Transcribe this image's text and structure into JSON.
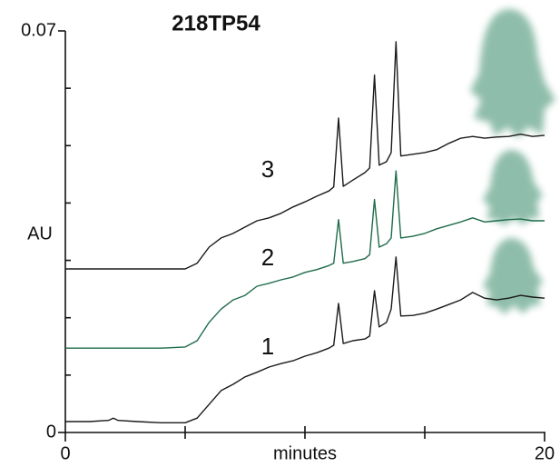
{
  "chart_data": {
    "type": "line",
    "title": "218TP54",
    "xlabel": "minutes",
    "ylabel": "AU",
    "x": [
      0,
      1,
      1.8,
      2,
      2.2,
      3,
      4,
      5,
      5.5,
      6,
      6.5,
      7,
      7.5,
      8,
      8.5,
      9,
      9.5,
      10,
      10.5,
      11,
      11.2,
      11.4,
      11.6,
      12,
      12.5,
      12.7,
      12.9,
      13.1,
      13.4,
      13.6,
      13.8,
      14,
      14.5,
      15,
      15.5,
      16,
      16.5,
      17,
      17.5,
      18,
      18.5,
      19,
      19.5,
      20
    ],
    "series": [
      {
        "name": "1",
        "color": "#1a1a1a",
        "values": [
          0.0019,
          0.0019,
          0.0021,
          0.0025,
          0.0021,
          0.0019,
          0.0017,
          0.0017,
          0.0025,
          0.0049,
          0.0073,
          0.0084,
          0.0097,
          0.0105,
          0.0114,
          0.012,
          0.0125,
          0.0133,
          0.0139,
          0.0147,
          0.0152,
          0.0225,
          0.0155,
          0.016,
          0.0163,
          0.0168,
          0.0247,
          0.0184,
          0.0192,
          0.0215,
          0.0306,
          0.0203,
          0.0204,
          0.0208,
          0.0215,
          0.0223,
          0.0231,
          0.0244,
          0.0234,
          0.0231,
          0.0234,
          0.0239,
          0.0236,
          0.0234
        ]
      },
      {
        "name": "2",
        "color": "#1f6b4a",
        "values": [
          0.0147,
          0.0147,
          0.0147,
          0.0147,
          0.0147,
          0.0147,
          0.0147,
          0.0149,
          0.016,
          0.0192,
          0.0215,
          0.0231,
          0.0239,
          0.0255,
          0.026,
          0.0266,
          0.0271,
          0.0279,
          0.0284,
          0.0291,
          0.0295,
          0.0371,
          0.0295,
          0.0298,
          0.0303,
          0.031,
          0.0406,
          0.0323,
          0.0329,
          0.0339,
          0.0456,
          0.0339,
          0.0342,
          0.0347,
          0.0355,
          0.0361,
          0.0367,
          0.0374,
          0.0367,
          0.0369,
          0.0371,
          0.0372,
          0.0369,
          0.0369
        ]
      },
      {
        "name": "3",
        "color": "#1a1a1a",
        "values": [
          0.0285,
          0.0285,
          0.0285,
          0.0285,
          0.0285,
          0.0285,
          0.0285,
          0.0285,
          0.0295,
          0.0323,
          0.0339,
          0.0347,
          0.0358,
          0.0369,
          0.0374,
          0.0382,
          0.0393,
          0.0402,
          0.0412,
          0.0421,
          0.0428,
          0.0548,
          0.0429,
          0.044,
          0.0453,
          0.0461,
          0.0623,
          0.0466,
          0.0472,
          0.0488,
          0.0681,
          0.0482,
          0.0485,
          0.0488,
          0.0493,
          0.0504,
          0.0513,
          0.0516,
          0.0513,
          0.0515,
          0.0516,
          0.052,
          0.0516,
          0.0518
        ]
      }
    ],
    "xlim": [
      0,
      20
    ],
    "xticks": [
      0,
      20
    ],
    "xminor_ticks": [
      5,
      10,
      15
    ],
    "ylim": [
      0,
      0.07
    ],
    "yticks": [
      0,
      0.07
    ],
    "yminor_ticks": [
      0.01,
      0.02,
      0.03,
      0.04,
      0.05,
      0.06
    ]
  }
}
